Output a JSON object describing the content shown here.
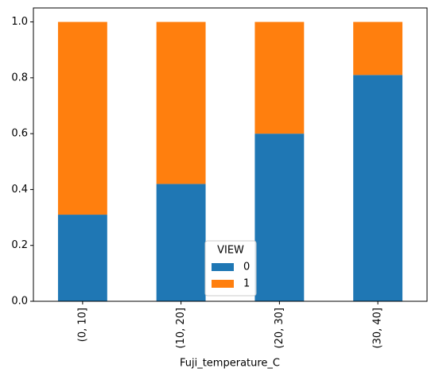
{
  "chart_data": {
    "type": "stacked_bar",
    "x_label": "Fuji_temperature_C",
    "categories": [
      "(0, 10]",
      "(10, 20]",
      "(20, 30]",
      "(30, 40]"
    ],
    "series": [
      {
        "name": "0",
        "color": "#1f77b4",
        "values": [
          0.31,
          0.42,
          0.6,
          0.81
        ]
      },
      {
        "name": "1",
        "color": "#ff7f0e",
        "values": [
          0.69,
          0.58,
          0.4,
          0.19
        ]
      }
    ],
    "legend_title": "VIEW",
    "legend_position": "lower center",
    "ylim": [
      0,
      1.05
    ],
    "yticks": [
      {
        "value": 0,
        "label": "0.0"
      },
      {
        "value": 0.2,
        "label": "0.2"
      },
      {
        "value": 0.4,
        "label": "0.4"
      },
      {
        "value": 0.6,
        "label": "0.6"
      },
      {
        "value": 0.8,
        "label": "0.8"
      },
      {
        "value": 1,
        "label": "1.0"
      }
    ]
  }
}
